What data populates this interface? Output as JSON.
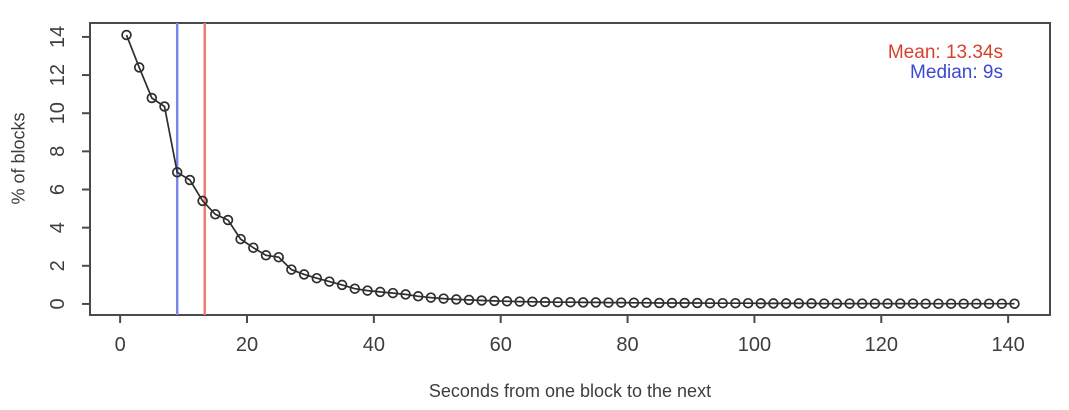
{
  "chart_data": {
    "type": "line",
    "title": "",
    "xlabel": "Seconds from one block to the next",
    "ylabel": "% of blocks",
    "marker": "open-circle",
    "grid": false,
    "legend_position": "top-right",
    "x": [
      1,
      3,
      5,
      7,
      9,
      11,
      13,
      15,
      17,
      19,
      21,
      23,
      25,
      27,
      29,
      31,
      33,
      35,
      37,
      39,
      41,
      43,
      45,
      47,
      49,
      51,
      53,
      55,
      57,
      59,
      61,
      63,
      65,
      67,
      69,
      71,
      73,
      75,
      77,
      79,
      81,
      83,
      85,
      87,
      89,
      91,
      93,
      95,
      97,
      99,
      101,
      103,
      105,
      107,
      109,
      111,
      113,
      115,
      117,
      119,
      121,
      123,
      125,
      127,
      129,
      131,
      133,
      135,
      137,
      139,
      141
    ],
    "values": [
      14.1,
      12.4,
      10.8,
      10.35,
      6.9,
      6.5,
      5.4,
      4.7,
      4.4,
      3.4,
      2.95,
      2.55,
      2.45,
      1.8,
      1.55,
      1.35,
      1.17,
      1.0,
      0.8,
      0.7,
      0.63,
      0.57,
      0.5,
      0.4,
      0.33,
      0.28,
      0.24,
      0.21,
      0.18,
      0.16,
      0.14,
      0.12,
      0.11,
      0.1,
      0.09,
      0.09,
      0.08,
      0.08,
      0.07,
      0.07,
      0.06,
      0.06,
      0.05,
      0.05,
      0.05,
      0.05,
      0.04,
      0.04,
      0.04,
      0.04,
      0.03,
      0.03,
      0.03,
      0.03,
      0.03,
      0.02,
      0.02,
      0.02,
      0.02,
      0.02,
      0.02,
      0.02,
      0.02,
      0.01,
      0.01,
      0.01,
      0.01,
      0.01,
      0.01,
      0.01,
      0.01
    ],
    "xticks": [
      0,
      20,
      40,
      60,
      80,
      100,
      120,
      140
    ],
    "yticks": [
      0,
      2,
      4,
      6,
      8,
      10,
      12,
      14
    ],
    "xlim": [
      -4.75,
      146.6
    ],
    "ylim": [
      -0.58,
      14.73
    ],
    "legend": [
      {
        "id": "mean",
        "label": "Mean: 13.34s",
        "value": 13.34,
        "color": "#d9402c",
        "line_color": "#ee7c72"
      },
      {
        "id": "median",
        "label": "Median: 9s",
        "value": 9,
        "color": "#3a49d2",
        "line_color": "#7a88e8"
      }
    ],
    "colors": {
      "series": "#2e2e2e",
      "frame": "#4a4a4a",
      "text": "#3d3d3d",
      "background": "#ffffff"
    }
  }
}
